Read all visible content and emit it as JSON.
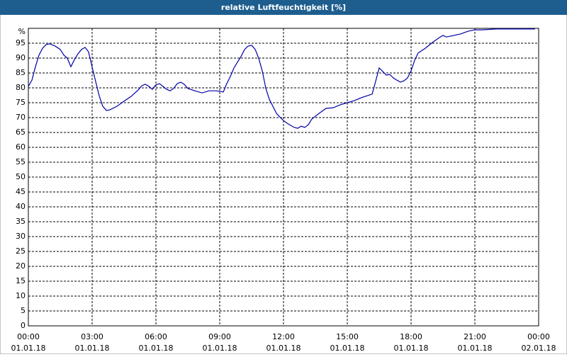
{
  "chart_data": {
    "type": "line",
    "title": "relative Luftfeuchtigkeit [%]",
    "x": [
      0,
      0.17,
      0.33,
      0.5,
      0.67,
      0.83,
      1,
      1.27,
      1.5,
      1.67,
      1.83,
      2,
      2.17,
      2.33,
      2.5,
      2.67,
      2.83,
      3,
      3.17,
      3.33,
      3.5,
      3.67,
      3.83,
      4.17,
      4.5,
      4.83,
      5.17,
      5.33,
      5.5,
      5.67,
      5.83,
      6,
      6.17,
      6.33,
      6.5,
      6.67,
      6.83,
      7,
      7.17,
      7.33,
      7.5,
      7.83,
      8.17,
      8.5,
      8.83,
      9.17,
      9.33,
      9.5,
      9.67,
      9.83,
      10,
      10.17,
      10.33,
      10.5,
      10.67,
      10.83,
      11,
      11.17,
      11.33,
      11.5,
      11.67,
      11.83,
      12,
      12.17,
      12.33,
      12.5,
      12.67,
      12.83,
      13,
      13.17,
      13.33,
      13.67,
      14,
      14.33,
      14.67,
      15,
      15.33,
      15.67,
      16.17,
      16.33,
      16.5,
      16.67,
      16.83,
      17,
      17.17,
      17.33,
      17.5,
      17.67,
      17.83,
      18,
      18.17,
      18.33,
      18.67,
      19,
      19.33,
      19.5,
      19.67,
      20,
      20.33,
      20.67,
      21,
      21.33,
      22,
      23.83
    ],
    "series": [
      {
        "color": "#0000a8",
        "values": [
          80.5,
          82.6,
          87,
          91,
          93.3,
          94.5,
          94.8,
          94,
          92.9,
          91,
          90,
          87.1,
          89.5,
          91.4,
          92.9,
          93.6,
          92.1,
          87,
          82,
          77.4,
          73.8,
          72.4,
          72.6,
          73.8,
          75.5,
          77.1,
          79.3,
          80.7,
          81.2,
          80.5,
          79.5,
          81,
          81.4,
          80.5,
          79.5,
          79,
          79.8,
          81.4,
          81.9,
          81.2,
          79.8,
          79,
          78.3,
          79,
          79,
          78.6,
          81.4,
          83.8,
          86.7,
          88.6,
          90.5,
          92.9,
          94,
          94.3,
          92.9,
          90,
          85.7,
          79.8,
          76.2,
          73.8,
          71.4,
          70.2,
          69,
          68.1,
          67.4,
          66.7,
          66.4,
          67.1,
          66.7,
          67.6,
          69.5,
          71.4,
          73.1,
          73.3,
          74.3,
          75,
          75.7,
          76.7,
          77.9,
          82.1,
          86.7,
          85.5,
          84.3,
          84.5,
          83.3,
          82.6,
          81.9,
          82.4,
          83.3,
          85.7,
          89.3,
          91.7,
          93.3,
          95.2,
          96.9,
          97.6,
          97.1,
          97.6,
          98.1,
          99,
          99.5,
          99.5,
          99.8,
          99.8
        ]
      }
    ],
    "xlim": [
      0,
      24
    ],
    "xticks": [
      {
        "value": 0,
        "label": "00:00",
        "date": "01.01.18"
      },
      {
        "value": 3,
        "label": "03:00",
        "date": "01.01.18"
      },
      {
        "value": 6,
        "label": "06:00",
        "date": "01.01.18"
      },
      {
        "value": 9,
        "label": "09:00",
        "date": "01.01.18"
      },
      {
        "value": 12,
        "label": "12:00",
        "date": "01.01.18"
      },
      {
        "value": 15,
        "label": "15:00",
        "date": "01.01.18"
      },
      {
        "value": 18,
        "label": "18:00",
        "date": "01.01.18"
      },
      {
        "value": 21,
        "label": "21:00",
        "date": "01.01.18"
      },
      {
        "value": 24,
        "label": "00:00",
        "date": "02.01.18"
      }
    ],
    "ylim": [
      0,
      100
    ],
    "yticks": [
      0,
      5,
      10,
      15,
      20,
      25,
      30,
      35,
      40,
      45,
      50,
      55,
      60,
      65,
      70,
      75,
      80,
      85,
      90,
      95,
      {
        "value": 100,
        "label": "%"
      }
    ],
    "grid": true
  }
}
